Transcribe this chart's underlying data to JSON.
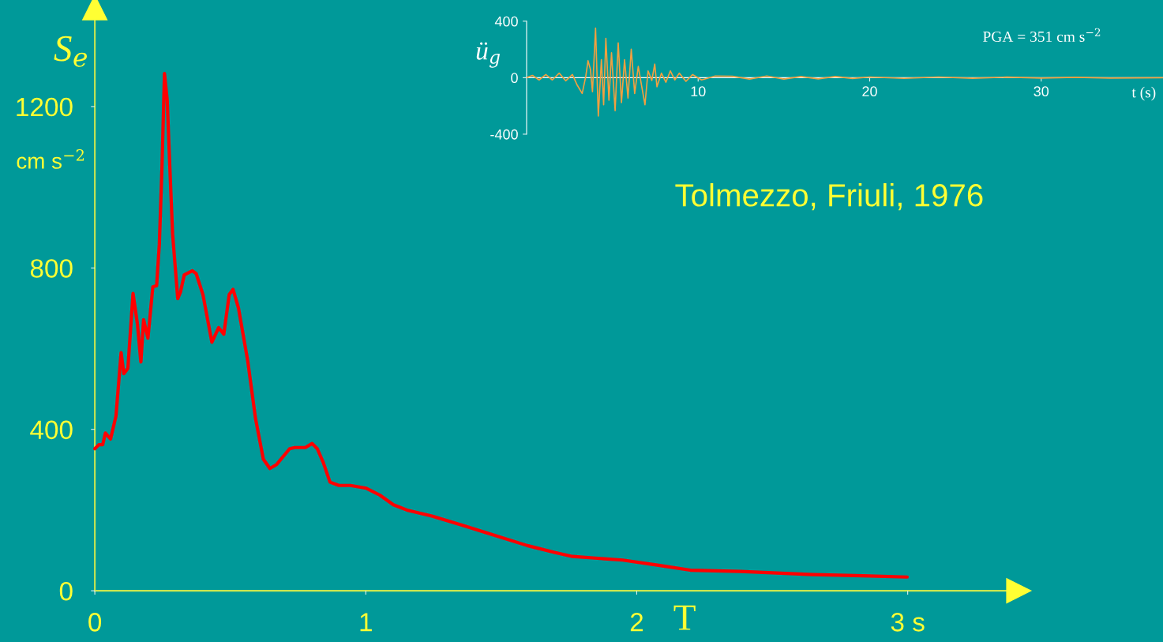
{
  "chart_data": [
    {
      "type": "line",
      "title": "Tolmezzo, Friuli, 1976",
      "xlabel": "T",
      "ylabel": "S$_{e}$",
      "annotations": [
        "cm s$^{−2}$"
      ],
      "xlim": [
        -0.35,
        3.41
      ],
      "ylim": [
        -127,
        1445
      ],
      "xticks": [
        0,
        1,
        2,
        {
          "value": 3,
          "label": "3 s"
        }
      ],
      "yticks": [
        0,
        400,
        800,
        1200
      ],
      "series": [
        {
          "color": "#ff0000",
          "x": [
            0,
            0.015,
            0.029,
            0.039,
            0.058,
            0.078,
            0.097,
            0.107,
            0.122,
            0.141,
            0.157,
            0.17,
            0.18,
            0.196,
            0.214,
            0.228,
            0.238,
            0.248,
            0.257,
            0.267,
            0.277,
            0.287,
            0.306,
            0.316,
            0.33,
            0.36,
            0.374,
            0.399,
            0.432,
            0.457,
            0.476,
            0.496,
            0.51,
            0.53,
            0.564,
            0.593,
            0.622,
            0.646,
            0.671,
            0.719,
            0.738,
            0.777,
            0.802,
            0.821,
            0.843,
            0.868,
            0.901,
            0.943,
            1.002,
            1.052,
            1.102,
            1.152,
            1.244,
            1.362,
            1.462,
            1.596,
            1.696,
            1.763,
            1.948,
            2.081,
            2.198,
            2.383,
            2.65,
            2.834,
            2.998
          ],
          "values": [
            352,
            362,
            362,
            391,
            376,
            433,
            590,
            538,
            551,
            737,
            662,
            567,
            672,
            626,
            753,
            756,
            858,
            1054,
            1282,
            1217,
            1047,
            884,
            724,
            740,
            783,
            793,
            786,
            734,
            616,
            652,
            636,
            734,
            747,
            701,
            571,
            427,
            326,
            303,
            313,
            352,
            355,
            355,
            365,
            352,
            318,
            269,
            261,
            261,
            254,
            237,
            213,
            200,
            185,
            161,
            140,
            112,
            95,
            85,
            76,
            63,
            51,
            48,
            40,
            37,
            34
          ]
        }
      ]
    },
    {
      "type": "line",
      "xlabel": "t (s)",
      "ylabel": "ü$_{g}$",
      "annotations": [
        "PGA = 351 cm s$^{−2}$"
      ],
      "xlim": [
        0,
        37.1
      ],
      "ylim": [
        -400,
        400
      ],
      "xticks": [
        10,
        20,
        30
      ],
      "yticks": [
        -400,
        0,
        400
      ],
      "series": [
        {
          "color": "#f0a040",
          "x": [
            0,
            0.34,
            0.73,
            1.12,
            1.5,
            1.9,
            2.28,
            2.67,
            2.93,
            3.24,
            3.45,
            3.58,
            3.72,
            3.84,
            4.02,
            4.18,
            4.36,
            4.49,
            4.62,
            4.8,
            4.95,
            5.16,
            5.34,
            5.53,
            5.71,
            5.91,
            6.1,
            6.3,
            6.51,
            6.69,
            6.9,
            7.08,
            7.3,
            7.47,
            7.6,
            7.86,
            8.12,
            8.38,
            8.64,
            8.9,
            9.29,
            9.68,
            10.2,
            11,
            12,
            13,
            14,
            15,
            16,
            17,
            18,
            19,
            20,
            22,
            24,
            26,
            28,
            30,
            32,
            34,
            37.1
          ],
          "values": [
            0,
            16,
            -16,
            22,
            -16,
            32,
            -22,
            22,
            -48,
            -112,
            10,
            120,
            60,
            -100,
            351,
            -272,
            128,
            -192,
            278,
            -160,
            176,
            -234,
            246,
            -176,
            128,
            -144,
            202,
            -112,
            80,
            -48,
            -192,
            48,
            -20,
            96,
            -64,
            32,
            -32,
            48,
            -16,
            32,
            -26,
            22,
            -16,
            12,
            10,
            -10,
            12,
            -10,
            8,
            -8,
            8,
            -6,
            5,
            -5,
            5,
            -4,
            4,
            -3,
            3,
            -3,
            0
          ]
        }
      ]
    }
  ]
}
